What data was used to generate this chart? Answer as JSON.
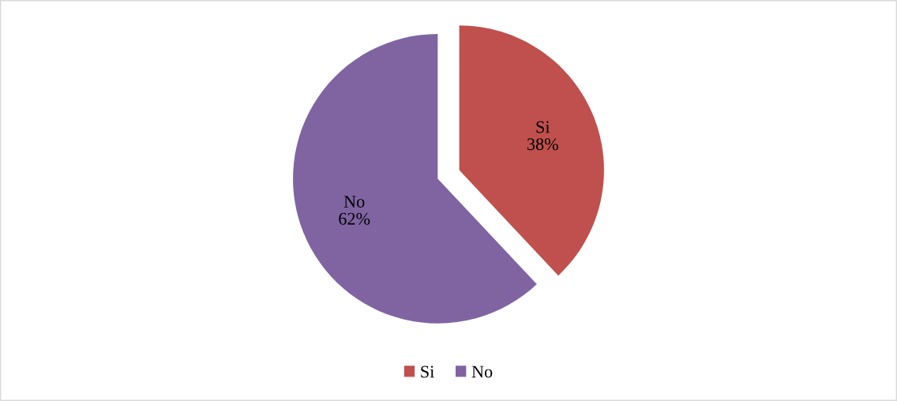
{
  "chart_data": {
    "type": "pie",
    "categories": [
      "Si",
      "No"
    ],
    "values": [
      38,
      62
    ],
    "colors": [
      "#c0504d",
      "#8064a2"
    ],
    "value_labels": [
      "38%",
      "62%"
    ],
    "legend": "bottom"
  }
}
